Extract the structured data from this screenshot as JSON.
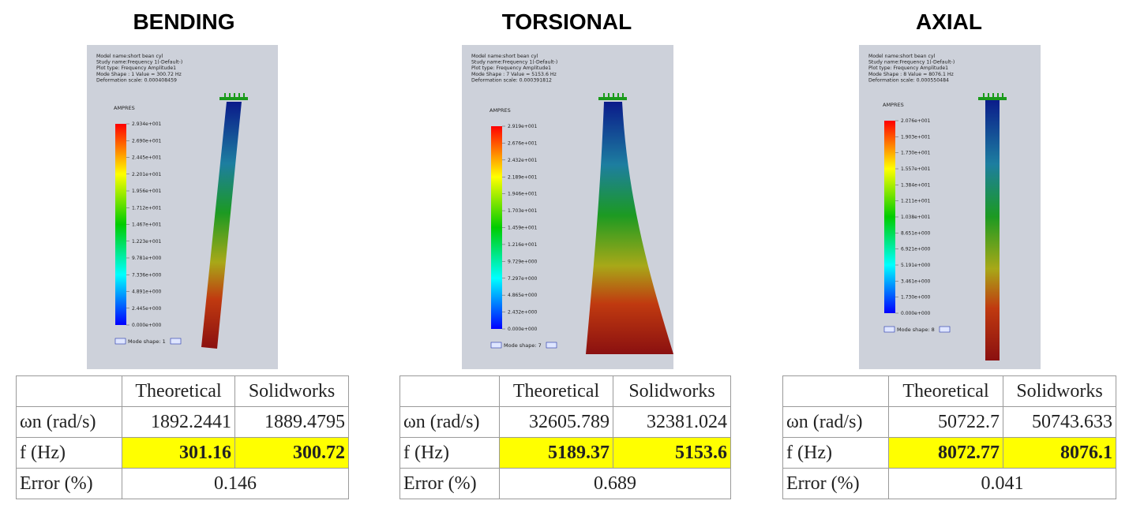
{
  "panels": [
    {
      "title": "BENDING",
      "image": {
        "info": [
          "Model name:short bean cyl",
          "Study name:Frequency 1(-Default-)",
          "Plot type: Frequency Amplitude1",
          "Mode Shape : 1  Value =     300.72 Hz",
          "Deformation scale: 0.000408459"
        ],
        "legend_title": "AMPRES",
        "legend_labels": [
          "2.934e+001",
          "2.690e+001",
          "2.445e+001",
          "2.201e+001",
          "1.956e+001",
          "1.712e+001",
          "1.467e+001",
          "1.223e+001",
          "9.781e+000",
          "7.336e+000",
          "4.891e+000",
          "2.445e+000",
          "0.000e+000"
        ],
        "nav": "Mode shape: 1"
      },
      "table": {
        "columns": [
          "Theoretical",
          "Solidworks"
        ],
        "rows": [
          {
            "label": "ωn (rad/s)",
            "values": [
              "1892.2441",
              "1889.4795"
            ]
          },
          {
            "label": "f (Hz)",
            "values": [
              "301.16",
              "300.72"
            ],
            "highlight": "#ffff00"
          }
        ],
        "error": {
          "label": "Error (%)",
          "value": "0.146"
        }
      }
    },
    {
      "title": "TORSIONAL",
      "image": {
        "info": [
          "Model name:short bean cyl",
          "Study name:Frequency 1(-Default-)",
          "Plot type: Frequency Amplitude1",
          "Mode Shape : 7  Value =      5153.6 Hz",
          "Deformation scale: 0.000391812"
        ],
        "legend_title": "AMPRES",
        "legend_labels": [
          "2.919e+001",
          "2.676e+001",
          "2.432e+001",
          "2.189e+001",
          "1.946e+001",
          "1.703e+001",
          "1.459e+001",
          "1.216e+001",
          "9.729e+000",
          "7.297e+000",
          "4.865e+000",
          "2.432e+000",
          "0.000e+000"
        ],
        "nav": "Mode shape: 7"
      },
      "table": {
        "columns": [
          "Theoretical",
          "Solidworks"
        ],
        "rows": [
          {
            "label": "ωn (rad/s)",
            "values": [
              "32605.789",
              "32381.024"
            ]
          },
          {
            "label": "f (Hz)",
            "values": [
              "5189.37",
              "5153.6"
            ],
            "highlight": "#ffff00"
          }
        ],
        "error": {
          "label": "Error (%)",
          "value": "0.689"
        }
      }
    },
    {
      "title": "AXIAL",
      "image": {
        "info": [
          "Model name:short bean cyl",
          "Study name:Frequency 1(-Default-)",
          "Plot type: Frequency Amplitude1",
          "Mode Shape : 8  Value =      8076.1 Hz",
          "Deformation scale: 0.000550484"
        ],
        "legend_title": "AMPRES",
        "legend_labels": [
          "2.076e+001",
          "1.903e+001",
          "1.730e+001",
          "1.557e+001",
          "1.384e+001",
          "1.211e+001",
          "1.038e+001",
          "8.651e+000",
          "6.921e+000",
          "5.191e+000",
          "3.461e+000",
          "1.730e+000",
          "0.000e+000"
        ],
        "nav": "Mode shape: 8"
      },
      "table": {
        "columns": [
          "Theoretical",
          "Solidworks"
        ],
        "rows": [
          {
            "label": "ωn (rad/s)",
            "values": [
              "50722.7",
              "50743.633"
            ]
          },
          {
            "label": "f (Hz)",
            "values": [
              "8072.77",
              "8076.1"
            ],
            "highlight": "#ffff00"
          }
        ],
        "error": {
          "label": "Error (%)",
          "value": "0.041"
        }
      }
    }
  ]
}
